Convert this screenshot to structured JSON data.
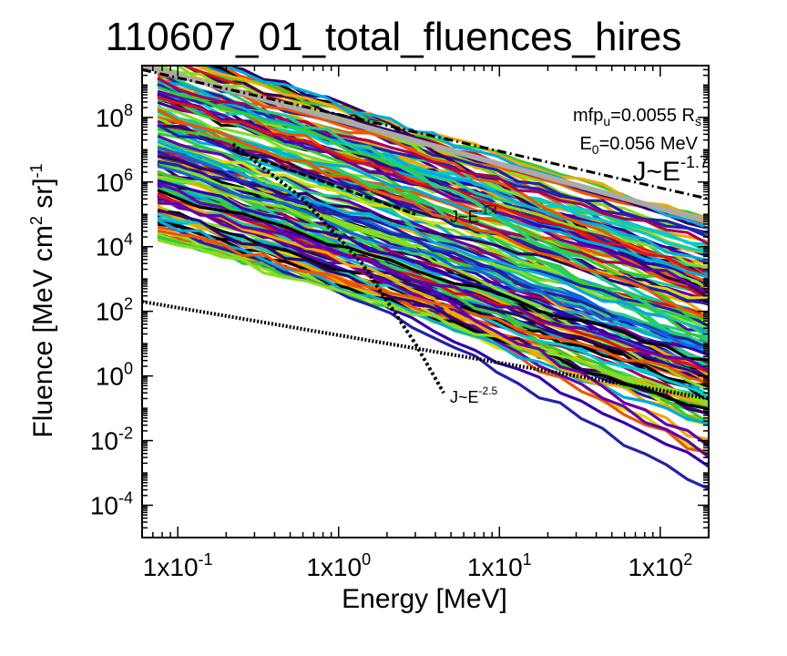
{
  "chart_data": {
    "type": "line",
    "title": "110607_01_total_fluences_hires",
    "xlabel": {
      "text": "Energy [MeV]"
    },
    "ylabel": {
      "base": "Fluence [MeV cm",
      "exp2": "2",
      "mid": " sr]",
      "expm1": "-1"
    },
    "xscale": "log",
    "yscale": "log",
    "xlim": [
      0.06,
      200
    ],
    "ylim": [
      1e-05,
      4000000000
    ],
    "x_ticks": [
      {
        "value": 0.1,
        "base": "1x10",
        "exp": "-1"
      },
      {
        "value": 1,
        "base": "1x10",
        "exp": "0"
      },
      {
        "value": 10,
        "base": "1x10",
        "exp": "1"
      },
      {
        "value": 100,
        "base": "1x10",
        "exp": "2"
      }
    ],
    "y_ticks": [
      {
        "value": 0.0001,
        "exp": "-4"
      },
      {
        "value": 0.01,
        "exp": "-2"
      },
      {
        "value": 1,
        "exp": "0"
      },
      {
        "value": 100,
        "exp": "2"
      },
      {
        "value": 10000,
        "exp": "4"
      },
      {
        "value": 1000000,
        "exp": "6"
      },
      {
        "value": 100000000,
        "exp": "8"
      }
    ],
    "annotations": {
      "mfp": {
        "pre": "mfp",
        "sub": "u",
        "mid": "=0.0055 R",
        "sub2": "s"
      },
      "e0": {
        "pre": "E",
        "sub": "0",
        "post": "=0.056 MeV"
      },
      "big_slope": {
        "text": "J~E",
        "exp": "-1.7"
      },
      "slope_upper": {
        "text": "J~E",
        "exp": "-1.4"
      },
      "slope_lower": {
        "text": "J~E",
        "exp": "-2.5"
      }
    },
    "reference_lines": [
      {
        "name": "upper-reference",
        "style": "gray",
        "points": [
          [
            0.06,
            4000000000
          ],
          [
            200,
            60000
          ]
        ]
      },
      {
        "name": "slope-1.7-reference",
        "style": "dashdot",
        "points": [
          [
            0.06,
            3000000000
          ],
          [
            200,
            300000
          ]
        ]
      },
      {
        "name": "lower-reference",
        "style": "dotted",
        "points": [
          [
            0.06,
            200
          ],
          [
            200,
            0.2
          ]
        ]
      },
      {
        "name": "slope-1.4-reference",
        "style": "dash",
        "points": [
          [
            0.22,
            10000000
          ],
          [
            3,
            100000
          ]
        ]
      },
      {
        "name": "steep-reference",
        "style": "dotted-bold",
        "points": [
          [
            0.22,
            15000000
          ],
          [
            0.6,
            300000
          ],
          [
            1.4,
            3000
          ],
          [
            3,
            10
          ],
          [
            4.5,
            0.3
          ]
        ]
      }
    ],
    "series_colors": [
      "#2222aa",
      "#1166dd",
      "#00aadd",
      "#00cccc",
      "#22cc88",
      "#33cc33",
      "#88dd22",
      "#dddd00",
      "#eeaa00",
      "#ee5500",
      "#dd1111",
      "#aa0055",
      "#6600aa",
      "#3300aa",
      "#000000",
      "#330066"
    ],
    "num_series": 140
  }
}
